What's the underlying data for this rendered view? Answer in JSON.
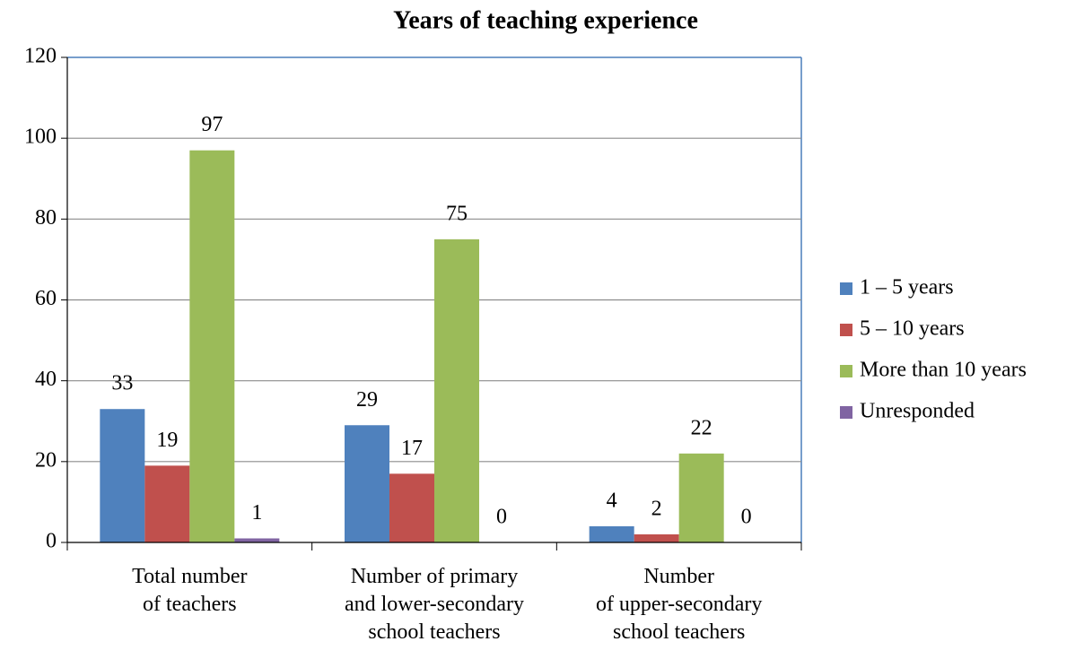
{
  "chart_data": {
    "type": "bar",
    "title": "Years of teaching experience",
    "categories": [
      [
        "Total number",
        "of teachers"
      ],
      [
        "Number of primary",
        "and lower-secondary",
        "school teachers"
      ],
      [
        "Number",
        "of upper-secondary",
        "school teachers"
      ]
    ],
    "series": [
      {
        "name": "1 – 5 years",
        "color": "#4f81bd",
        "values": [
          33,
          29,
          4
        ]
      },
      {
        "name": "5 – 10 years",
        "color": "#c0504d",
        "values": [
          19,
          17,
          2
        ]
      },
      {
        "name": "More than 10 years",
        "color": "#9bbb59",
        "values": [
          97,
          75,
          22
        ]
      },
      {
        "name": "Unresponded",
        "color": "#8064a2",
        "values": [
          1,
          0,
          0
        ]
      }
    ],
    "ylim": [
      0,
      120
    ],
    "yticks": [
      0,
      20,
      40,
      60,
      80,
      100,
      120
    ],
    "grid": true,
    "legend": "right"
  }
}
